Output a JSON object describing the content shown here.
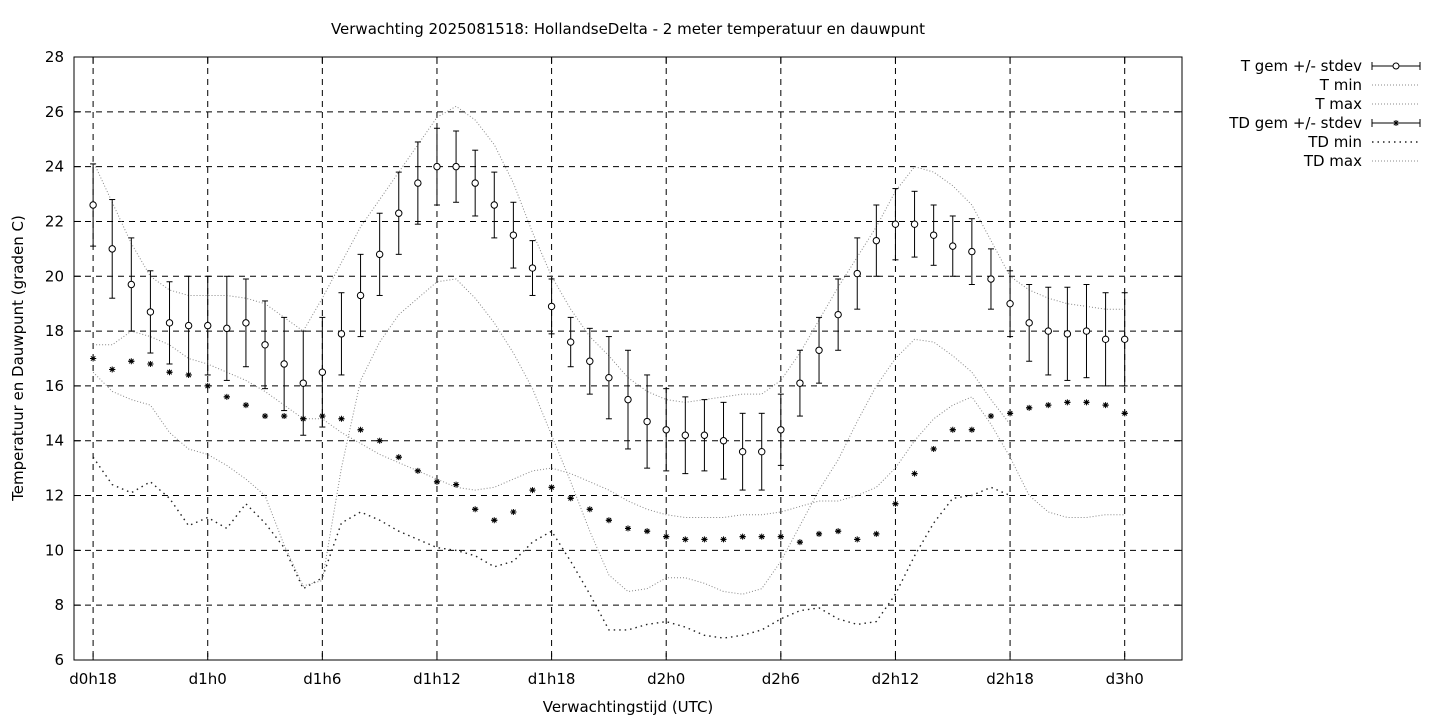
{
  "chart_data": {
    "type": "line",
    "title": "Verwachting 2025081518: HollandseDelta - 2 meter temperatuur en dauwpunt",
    "xlabel": "Verwachtingstijd (UTC)",
    "ylabel": "Temperatuur en Dauwpunt (graden C)",
    "x_unit": "hours since d0h0",
    "xlim": [
      17,
      75
    ],
    "ylim": [
      6,
      28
    ],
    "x_ticks": [
      {
        "x": 18,
        "label": "d0h18"
      },
      {
        "x": 24,
        "label": "d1h0"
      },
      {
        "x": 30,
        "label": "d1h6"
      },
      {
        "x": 36,
        "label": "d1h12"
      },
      {
        "x": 42,
        "label": "d1h18"
      },
      {
        "x": 48,
        "label": "d2h0"
      },
      {
        "x": 54,
        "label": "d2h6"
      },
      {
        "x": 60,
        "label": "d2h12"
      },
      {
        "x": 66,
        "label": "d2h18"
      },
      {
        "x": 72,
        "label": "d3h0"
      }
    ],
    "y_ticks": [
      6,
      8,
      10,
      12,
      14,
      16,
      18,
      20,
      22,
      24,
      26,
      28
    ],
    "grid": true,
    "legend_position": "outside-top-right",
    "x": [
      18,
      19,
      20,
      21,
      22,
      23,
      24,
      25,
      26,
      27,
      28,
      29,
      30,
      31,
      32,
      33,
      34,
      35,
      36,
      37,
      38,
      39,
      40,
      41,
      42,
      43,
      44,
      45,
      46,
      47,
      48,
      49,
      50,
      51,
      52,
      53,
      54,
      55,
      56,
      57,
      58,
      59,
      60,
      61,
      62,
      63,
      64,
      65,
      66,
      67,
      68,
      69,
      70,
      71,
      72
    ],
    "series": [
      {
        "name": "T gem +/- stdev",
        "style": "errorbar-circle",
        "values": [
          22.6,
          21.0,
          19.7,
          18.7,
          18.3,
          18.2,
          18.2,
          18.1,
          18.3,
          17.5,
          16.8,
          16.1,
          16.5,
          17.9,
          19.3,
          20.8,
          22.3,
          23.4,
          24.0,
          24.0,
          23.4,
          22.6,
          21.5,
          20.3,
          18.9,
          17.6,
          16.9,
          16.3,
          15.5,
          14.7,
          14.4,
          14.2,
          14.2,
          14.0,
          13.6,
          13.6,
          14.4,
          16.1,
          17.3,
          18.6,
          20.1,
          21.3,
          21.9,
          21.9,
          21.5,
          21.1,
          20.9,
          19.9,
          19.0,
          18.3,
          18.0,
          17.9,
          18.0,
          17.7,
          17.7
        ],
        "stdev": [
          1.5,
          1.8,
          1.7,
          1.5,
          1.5,
          1.8,
          1.8,
          1.9,
          1.6,
          1.6,
          1.7,
          1.9,
          2.0,
          1.5,
          1.5,
          1.5,
          1.5,
          1.5,
          1.4,
          1.3,
          1.2,
          1.2,
          1.2,
          1.0,
          1.0,
          0.9,
          1.2,
          1.5,
          1.8,
          1.7,
          1.5,
          1.4,
          1.3,
          1.4,
          1.4,
          1.4,
          1.3,
          1.2,
          1.2,
          1.3,
          1.3,
          1.3,
          1.3,
          1.2,
          1.1,
          1.1,
          1.2,
          1.1,
          1.2,
          1.4,
          1.6,
          1.7,
          1.7,
          1.7,
          1.7
        ]
      },
      {
        "name": "T min",
        "style": "dotted",
        "values": [
          17.5,
          17.5,
          18.0,
          17.8,
          17.5,
          17.0,
          16.8,
          16.5,
          16.2,
          15.8,
          15.3,
          14.8,
          14.8,
          14.3,
          13.9,
          13.5,
          13.2,
          12.9,
          12.6,
          12.3,
          12.2,
          12.3,
          12.6,
          12.9,
          13.0,
          12.8,
          12.5,
          12.2,
          11.8,
          11.5,
          11.3,
          11.2,
          11.2,
          11.2,
          11.3,
          11.3,
          11.4,
          11.6,
          11.8,
          11.8,
          12.0,
          12.3,
          13.0,
          14.0,
          14.8,
          15.3,
          15.6,
          14.6,
          13.4,
          12.0,
          11.4,
          11.2,
          11.2,
          11.3,
          11.3
        ]
      },
      {
        "name": "T max",
        "style": "dotted",
        "values": [
          24.2,
          22.7,
          21.2,
          20.0,
          19.5,
          19.3,
          19.3,
          19.3,
          19.2,
          19.0,
          18.5,
          18.0,
          19.2,
          20.5,
          21.8,
          22.8,
          23.8,
          24.8,
          25.8,
          26.2,
          25.7,
          24.8,
          23.4,
          21.6,
          20.0,
          18.8,
          17.8,
          17.1,
          16.3,
          15.8,
          15.5,
          15.4,
          15.5,
          15.6,
          15.7,
          15.7,
          16.2,
          17.2,
          18.4,
          19.6,
          20.7,
          21.8,
          23.1,
          24.0,
          23.8,
          23.3,
          22.6,
          21.3,
          20.0,
          19.5,
          19.2,
          19.0,
          18.9,
          18.8,
          18.8
        ]
      },
      {
        "name": "TD gem +/- stdev",
        "style": "errorbar-star",
        "values": [
          17.0,
          16.6,
          16.9,
          16.8,
          16.5,
          16.4,
          16.0,
          15.6,
          15.3,
          14.9,
          14.9,
          14.8,
          14.9,
          14.8,
          14.4,
          14.0,
          13.4,
          12.9,
          12.5,
          12.4,
          11.5,
          11.1,
          11.4,
          12.2,
          12.3,
          11.9,
          11.5,
          11.1,
          10.8,
          10.7,
          10.5,
          10.4,
          10.4,
          10.4,
          10.5,
          10.5,
          10.5,
          10.3,
          10.6,
          10.7,
          10.4,
          10.6,
          11.7,
          12.8,
          13.7,
          14.4,
          14.4,
          14.9,
          15.0,
          15.2,
          15.3,
          15.4,
          15.4,
          15.3,
          15.0
        ]
      },
      {
        "name": "TD min",
        "style": "dotted",
        "values": [
          13.4,
          12.4,
          12.1,
          12.5,
          11.9,
          10.9,
          11.2,
          10.8,
          11.7,
          11.0,
          10.1,
          8.6,
          9.0,
          11.0,
          11.4,
          11.1,
          10.7,
          10.4,
          10.1,
          10.0,
          9.8,
          9.4,
          9.6,
          10.3,
          10.7,
          9.6,
          8.4,
          7.1,
          7.1,
          7.3,
          7.4,
          7.2,
          6.9,
          6.8,
          6.9,
          7.1,
          7.5,
          7.8,
          7.9,
          7.5,
          7.3,
          7.4,
          8.4,
          9.8,
          11.0,
          11.9,
          12.0,
          12.3,
          12.0,
          null,
          null,
          null,
          null,
          null,
          null
        ]
      },
      {
        "name": "TD max",
        "style": "dotted",
        "values": [
          16.5,
          15.8,
          15.5,
          15.3,
          14.3,
          13.7,
          13.5,
          13.1,
          12.6,
          12.0,
          10.2,
          8.7,
          8.9,
          13.0,
          16.2,
          17.6,
          18.6,
          19.2,
          19.8,
          19.9,
          19.2,
          18.3,
          17.2,
          15.9,
          14.2,
          12.5,
          10.7,
          9.1,
          8.5,
          8.6,
          9.0,
          9.0,
          8.8,
          8.5,
          8.4,
          8.6,
          9.6,
          10.9,
          12.2,
          13.3,
          14.7,
          16.0,
          17.0,
          17.7,
          17.6,
          17.1,
          16.5,
          15.5,
          14.6,
          null,
          null,
          null,
          null,
          null,
          null
        ]
      }
    ]
  }
}
